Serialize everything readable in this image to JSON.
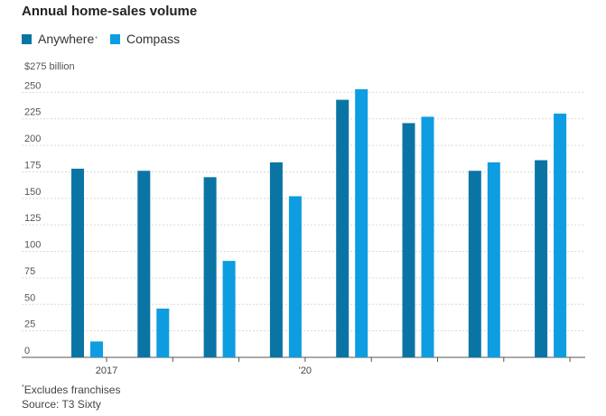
{
  "chart_data": {
    "type": "bar",
    "title": "Annual home-sales volume",
    "unit_label": "$275 billion",
    "categories": [
      "2017",
      "",
      "",
      "'20",
      "",
      "",
      "",
      ""
    ],
    "series": [
      {
        "name": "Anywhere",
        "values": [
          178,
          176,
          170,
          184,
          243,
          221,
          176,
          186
        ],
        "color": "#0a75a5"
      },
      {
        "name": "Compass",
        "values": [
          15,
          46,
          91,
          152,
          253,
          227,
          184,
          230
        ],
        "color": "#0d9de0"
      }
    ],
    "yticks": [
      "0",
      "25",
      "50",
      "75",
      "100",
      "125",
      "150",
      "175",
      "200",
      "225",
      "250"
    ],
    "ylim": [
      0,
      275
    ],
    "grid": true,
    "legend_position": "top-left"
  },
  "legend_marker": "*",
  "footnote": {
    "marker": "*",
    "text": "Excludes franchises"
  },
  "source": "Source: T3 Sixty"
}
